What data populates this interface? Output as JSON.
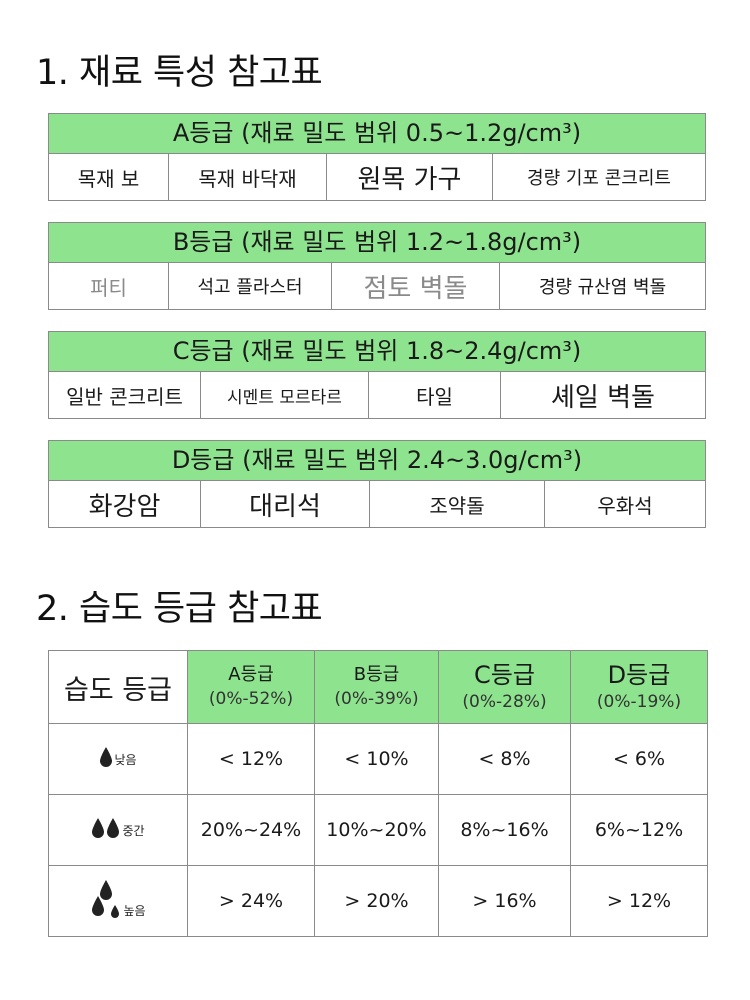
{
  "section1": {
    "title": "1. 재료 특성 참고표",
    "grades": [
      {
        "header": "A등급 (재료 밀도 범위 0.5~1.2g/cm³)",
        "materials": [
          "목재 보",
          "목재 바닥재",
          "원목 가구",
          "경량 기포 콘크리트"
        ]
      },
      {
        "header": "B등급 (재료 밀도 범위 1.2~1.8g/cm³)",
        "materials": [
          "퍼티",
          "석고 플라스터",
          "점토 벽돌",
          "경량 규산염 벽돌"
        ]
      },
      {
        "header": "C등급 (재료 밀도 범위 1.8~2.4g/cm³)",
        "materials": [
          "일반 콘크리트",
          "시멘트 모르타르",
          "타일",
          "셰일 벽돌"
        ]
      },
      {
        "header": "D등급 (재료 밀도 범위 2.4~3.0g/cm³)",
        "materials": [
          "화강암",
          "대리석",
          "조약돌",
          "우화석"
        ]
      }
    ]
  },
  "section2": {
    "title": "2. 습도 등급 참고표",
    "corner": "습도 등급",
    "columns": [
      {
        "name": "A등급",
        "range": "(0%-52%)"
      },
      {
        "name": "B등급",
        "range": "(0%-39%)"
      },
      {
        "name": "C등급",
        "range": "(0%-28%)"
      },
      {
        "name": "D등급",
        "range": "(0%-19%)"
      }
    ],
    "rows": [
      {
        "level": "낮음",
        "icon": "single-drop-icon",
        "values": [
          "< 12%",
          "< 10%",
          "< 8%",
          "< 6%"
        ]
      },
      {
        "level": "중간",
        "icon": "double-drop-icon",
        "values": [
          "20%~24%",
          "10%~20%",
          "8%~16%",
          "6%~12%"
        ]
      },
      {
        "level": "높음",
        "icon": "triple-drop-icon",
        "values": [
          "> 24%",
          "> 20%",
          "> 16%",
          "> 12%"
        ]
      }
    ]
  },
  "colors": {
    "header_green": "#8ee38e",
    "border": "#8a8a8a",
    "drop": "#222222"
  }
}
